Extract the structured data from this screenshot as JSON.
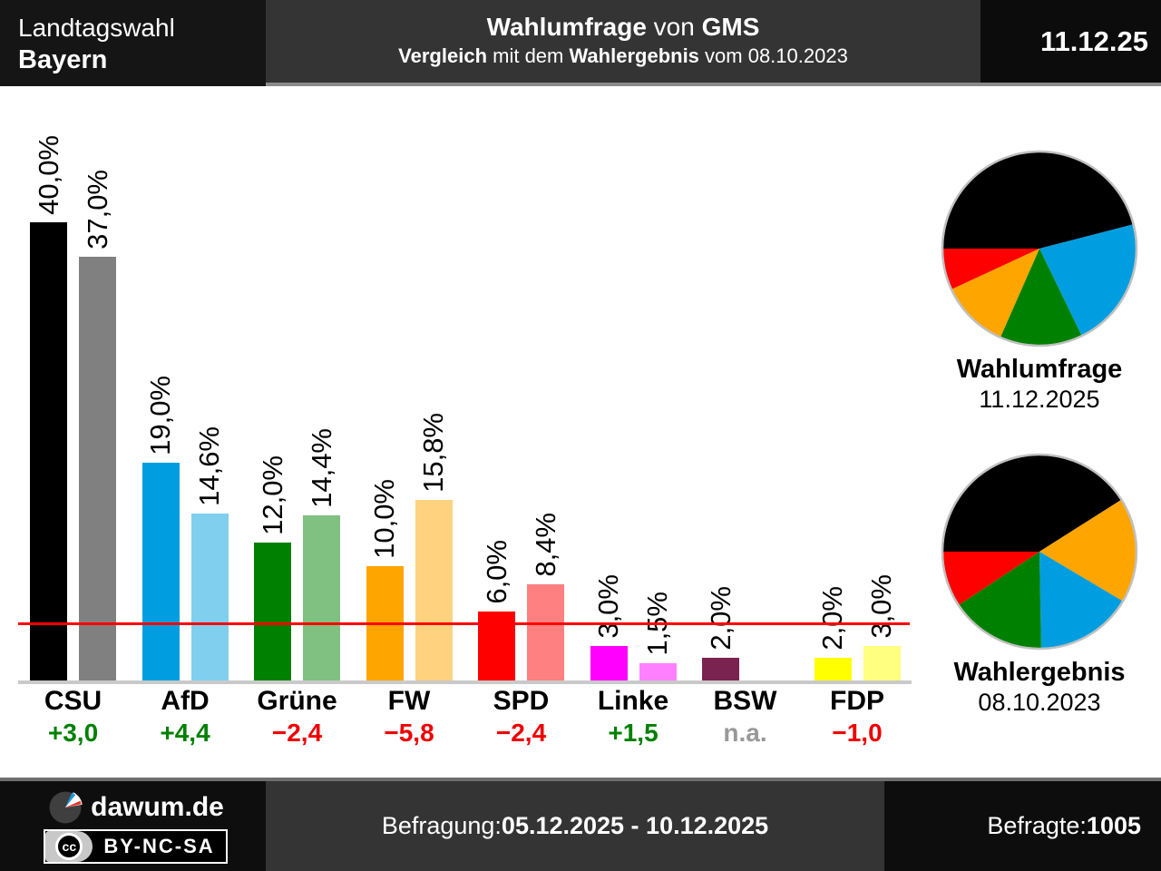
{
  "header": {
    "election_type": "Landtagswahl",
    "region": "Bayern",
    "title": {
      "p1": "Wahlumfrage",
      "p2": " von ",
      "p3": "GMS"
    },
    "subtitle": {
      "p1": "Vergleich",
      "p2": " mit dem ",
      "p3": "Wahlergebnis",
      "p4": " vom 08.10.2023"
    },
    "date": "11.12.25"
  },
  "chart_data": {
    "type": "bar",
    "unit": "%",
    "ylim": [
      0,
      42
    ],
    "threshold_pct": 5,
    "series": [
      {
        "name": "Wahlumfrage 11.12.2025"
      },
      {
        "name": "Wahlergebnis 08.10.2023"
      }
    ],
    "parties": [
      {
        "name": "CSU",
        "color": "#000000",
        "light": "#808080",
        "poll": 40.0,
        "poll_label": "40,0%",
        "result": 37.0,
        "result_label": "37,0%",
        "diff": "+3,0",
        "diff_type": "up"
      },
      {
        "name": "AfD",
        "color": "#009EE0",
        "light": "#80CFEF",
        "poll": 19.0,
        "poll_label": "19,0%",
        "result": 14.6,
        "result_label": "14,6%",
        "diff": "+4,4",
        "diff_type": "up"
      },
      {
        "name": "Grüne",
        "color": "#008000",
        "light": "#80C080",
        "poll": 12.0,
        "poll_label": "12,0%",
        "result": 14.4,
        "result_label": "14,4%",
        "diff": "−2,4",
        "diff_type": "down"
      },
      {
        "name": "FW",
        "color": "#FFA500",
        "light": "#FFD280",
        "poll": 10.0,
        "poll_label": "10,0%",
        "result": 15.8,
        "result_label": "15,8%",
        "diff": "−5,8",
        "diff_type": "down"
      },
      {
        "name": "SPD",
        "color": "#FF0000",
        "light": "#FF8080",
        "poll": 6.0,
        "poll_label": "6,0%",
        "result": 8.4,
        "result_label": "8,4%",
        "diff": "−2,4",
        "diff_type": "down"
      },
      {
        "name": "Linke",
        "color": "#FF00FF",
        "light": "#FF80FF",
        "poll": 3.0,
        "poll_label": "3,0%",
        "result": 1.5,
        "result_label": "1,5%",
        "diff": "+1,5",
        "diff_type": "up"
      },
      {
        "name": "BSW",
        "color": "#7A2350",
        "light": null,
        "poll": 2.0,
        "poll_label": "2,0%",
        "result": null,
        "result_label": null,
        "diff": "n.a.",
        "diff_type": "na"
      },
      {
        "name": "FDP",
        "color": "#FFFF00",
        "light": "#FFFF80",
        "poll": 2.0,
        "poll_label": "2,0%",
        "result": 3.0,
        "result_label": "3,0%",
        "diff": "−1,0",
        "diff_type": "down"
      }
    ],
    "diff_colors": {
      "up": "#008000",
      "down": "#EE0000",
      "na": "#999999"
    },
    "threshold_color": "#FF0000"
  },
  "pies": [
    {
      "title": "Wahlumfrage",
      "date": "11.12.2025",
      "slices": [
        {
          "party": "CSU",
          "value": 40.0,
          "color": "#000000"
        },
        {
          "party": "AfD",
          "value": 19.0,
          "color": "#009EE0"
        },
        {
          "party": "Grüne",
          "value": 12.0,
          "color": "#008000"
        },
        {
          "party": "FW",
          "value": 10.0,
          "color": "#FFA500"
        },
        {
          "party": "SPD",
          "value": 6.0,
          "color": "#FF0000"
        }
      ]
    },
    {
      "title": "Wahlergebnis",
      "date": "08.10.2023",
      "slices": [
        {
          "party": "CSU",
          "value": 37.0,
          "color": "#000000"
        },
        {
          "party": "FW",
          "value": 15.8,
          "color": "#FFA500"
        },
        {
          "party": "AfD",
          "value": 14.6,
          "color": "#009EE0"
        },
        {
          "party": "Grüne",
          "value": 14.4,
          "color": "#008000"
        },
        {
          "party": "SPD",
          "value": 8.4,
          "color": "#FF0000"
        }
      ]
    }
  ],
  "footer": {
    "brand": "dawum.de",
    "cc_mark": "cc",
    "license": "BY-NC-SA",
    "survey_label": "Befragung: ",
    "survey_period": "05.12.2025 - 10.12.2025",
    "respondents_label": "Befragte: ",
    "respondents": "1005"
  }
}
